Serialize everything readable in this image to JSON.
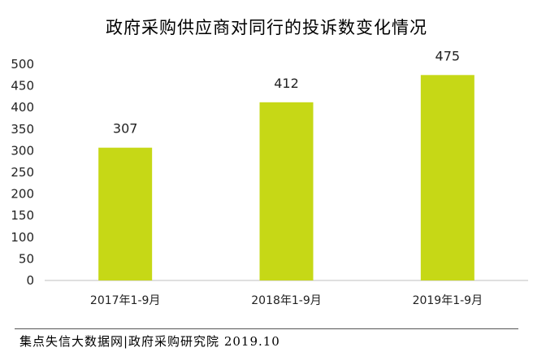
{
  "chart_data": {
    "type": "bar",
    "title": "政府采购供应商对同行的投诉数变化情况",
    "categories": [
      "2017年1-9月",
      "2018年1-9月",
      "2019年1-9月"
    ],
    "values": [
      307,
      412,
      475
    ],
    "yticks": [
      0,
      50,
      100,
      150,
      200,
      250,
      300,
      350,
      400,
      450,
      500
    ],
    "ylim": [
      0,
      500
    ],
    "xlabel": "",
    "ylabel": "",
    "grid": false,
    "bar_color": "#c6d816"
  },
  "footer": {
    "source": "集点失信大数据网|政府采购研究院 2019.10"
  }
}
